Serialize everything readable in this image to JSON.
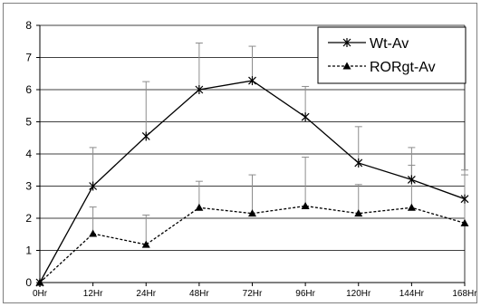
{
  "chart_data": {
    "type": "line",
    "title": "",
    "xlabel": "",
    "ylabel": "",
    "categories": [
      "0Hr",
      "12Hr",
      "24Hr",
      "48Hr",
      "72Hr",
      "96Hr",
      "120Hr",
      "144Hr",
      "168Hr"
    ],
    "ylim": [
      0,
      8
    ],
    "yticks": [
      "0",
      "1",
      "2",
      "3",
      "4",
      "5",
      "6",
      "7",
      "8"
    ],
    "grid": true,
    "legend_position": "top-right",
    "series": [
      {
        "name": "Wt-Av",
        "marker": "star",
        "line_style": "solid",
        "color": "#000000",
        "values": [
          0,
          3.0,
          4.55,
          6.0,
          6.28,
          5.15,
          3.72,
          3.2,
          2.6
        ],
        "error_upper": [
          0,
          4.2,
          6.25,
          7.45,
          7.35,
          6.1,
          4.85,
          4.2,
          3.5
        ]
      },
      {
        "name": "RORgt-Av",
        "marker": "triangle",
        "line_style": "dashed",
        "color": "#000000",
        "values": [
          0,
          1.52,
          1.18,
          2.33,
          2.15,
          2.38,
          2.15,
          2.33,
          1.85
        ],
        "error_upper": [
          0,
          2.35,
          2.1,
          3.15,
          3.35,
          3.9,
          3.05,
          3.65,
          3.35
        ]
      }
    ]
  }
}
